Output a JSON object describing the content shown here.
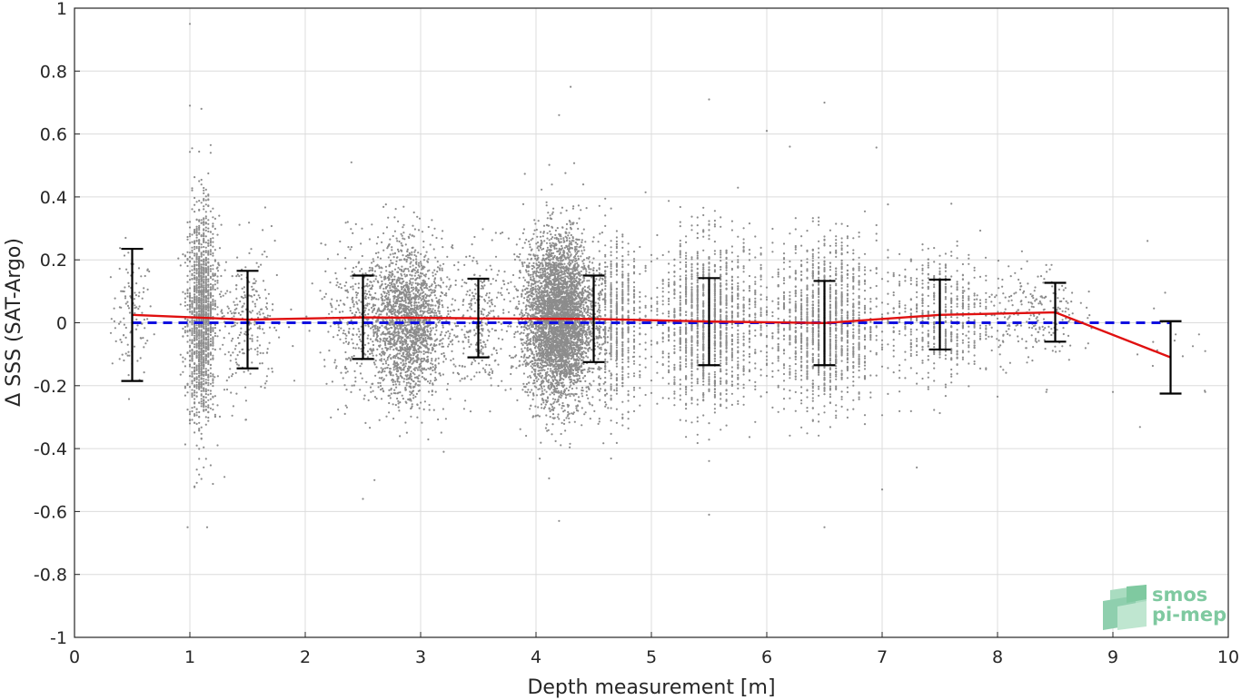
{
  "chart_data": {
    "type": "scatter",
    "xlabel": "Depth measurement [m]",
    "ylabel": "Δ SSS (SAT-Argo)",
    "xlim": [
      0,
      10
    ],
    "ylim": [
      -1,
      1
    ],
    "x_ticks": [
      "0",
      "1",
      "2",
      "3",
      "4",
      "5",
      "6",
      "7",
      "8",
      "9",
      "10"
    ],
    "y_ticks": [
      "-1",
      "-0.8",
      "-0.6",
      "-0.4",
      "-0.2",
      "0",
      "0.2",
      "0.4",
      "0.6",
      "0.8",
      "1"
    ],
    "grid": true,
    "colors": {
      "scatter": "#8c8c8c",
      "mean_line": "#e01010",
      "zero_line": "#1010e0",
      "error_bars": "#000000",
      "logo": "#7fc9a0"
    },
    "scatter_clusters": [
      {
        "x_center": 0.5,
        "x_spread": 0.18,
        "y_mean": 0.02,
        "y_std": 0.1,
        "count": 110,
        "discrete": false
      },
      {
        "x_center": 1.1,
        "x_spread": 0.12,
        "y_mean": 0.02,
        "y_std": 0.16,
        "count": 1600,
        "discrete": true,
        "x_step": 0.02
      },
      {
        "x_center": 1.5,
        "x_spread": 0.3,
        "y_mean": 0.01,
        "y_std": 0.12,
        "count": 260,
        "discrete": false
      },
      {
        "x_center": 2.5,
        "x_spread": 0.35,
        "y_mean": 0.02,
        "y_std": 0.12,
        "count": 420,
        "discrete": false
      },
      {
        "x_center": 2.9,
        "x_spread": 0.3,
        "y_mean": 0.0,
        "y_std": 0.12,
        "count": 1900,
        "discrete": false
      },
      {
        "x_center": 3.5,
        "x_spread": 0.3,
        "y_mean": 0.01,
        "y_std": 0.11,
        "count": 320,
        "discrete": false
      },
      {
        "x_center": 4.2,
        "x_spread": 0.3,
        "y_mean": 0.01,
        "y_std": 0.13,
        "count": 4300,
        "discrete": false
      },
      {
        "x_center": 4.7,
        "x_spread": 0.2,
        "y_mean": 0.0,
        "y_std": 0.13,
        "count": 600,
        "discrete": true,
        "x_step": 0.05
      },
      {
        "x_center": 5.5,
        "x_spread": 0.45,
        "y_mean": 0.0,
        "y_std": 0.13,
        "count": 1500,
        "discrete": true,
        "x_step": 0.05
      },
      {
        "x_center": 6.5,
        "x_spread": 0.45,
        "y_mean": 0.0,
        "y_std": 0.13,
        "count": 1400,
        "discrete": true,
        "x_step": 0.05
      },
      {
        "x_center": 7.5,
        "x_spread": 0.45,
        "y_mean": 0.02,
        "y_std": 0.1,
        "count": 600,
        "discrete": true,
        "x_step": 0.05
      },
      {
        "x_center": 8.3,
        "x_spread": 0.4,
        "y_mean": 0.03,
        "y_std": 0.08,
        "count": 220,
        "discrete": false
      },
      {
        "x_center": 9.5,
        "x_spread": 0.4,
        "y_mean": -0.05,
        "y_std": 0.12,
        "count": 14,
        "discrete": false
      }
    ],
    "outliers": [
      [
        1.0,
        0.95
      ],
      [
        1.0,
        0.69
      ],
      [
        1.1,
        0.68
      ],
      [
        0.98,
        -0.65
      ],
      [
        1.15,
        -0.65
      ],
      [
        1.3,
        -0.49
      ],
      [
        2.5,
        -0.56
      ],
      [
        2.6,
        -0.5
      ],
      [
        3.2,
        -0.41
      ],
      [
        4.2,
        0.66
      ],
      [
        4.3,
        0.75
      ],
      [
        4.2,
        -0.63
      ],
      [
        5.5,
        0.71
      ],
      [
        5.5,
        -0.61
      ],
      [
        6.5,
        0.7
      ],
      [
        6.5,
        -0.65
      ],
      [
        6.0,
        0.61
      ],
      [
        7.0,
        -0.53
      ],
      [
        7.3,
        -0.46
      ],
      [
        9.3,
        0.26
      ],
      [
        9.0,
        -0.22
      ],
      [
        9.8,
        -0.22
      ],
      [
        9.8,
        -0.09
      ],
      [
        2.4,
        0.51
      ],
      [
        6.2,
        0.56
      ]
    ],
    "series": [
      {
        "kind": "mean",
        "x": [
          0.5,
          1.5,
          2.5,
          3.5,
          4.5,
          5.5,
          6.5,
          7.5,
          8.5,
          9.5
        ],
        "y": [
          0.025,
          0.01,
          0.017,
          0.014,
          0.012,
          0.004,
          -0.001,
          0.025,
          0.033,
          -0.11
        ]
      },
      {
        "kind": "zero-reference",
        "x": [
          0.5,
          9.5
        ],
        "y": [
          0,
          0
        ]
      }
    ],
    "error_bars": [
      {
        "x": 0.5,
        "low": -0.185,
        "high": 0.235
      },
      {
        "x": 1.5,
        "low": -0.145,
        "high": 0.165
      },
      {
        "x": 2.5,
        "low": -0.115,
        "high": 0.15
      },
      {
        "x": 3.5,
        "low": -0.11,
        "high": 0.14
      },
      {
        "x": 4.5,
        "low": -0.125,
        "high": 0.15
      },
      {
        "x": 5.5,
        "low": -0.135,
        "high": 0.142
      },
      {
        "x": 6.5,
        "low": -0.135,
        "high": 0.133
      },
      {
        "x": 7.5,
        "low": -0.085,
        "high": 0.137
      },
      {
        "x": 8.5,
        "low": -0.06,
        "high": 0.127
      },
      {
        "x": 9.5,
        "low": -0.225,
        "high": 0.005
      }
    ]
  },
  "logo": {
    "line1": "smos",
    "line2": "pi-mep"
  }
}
